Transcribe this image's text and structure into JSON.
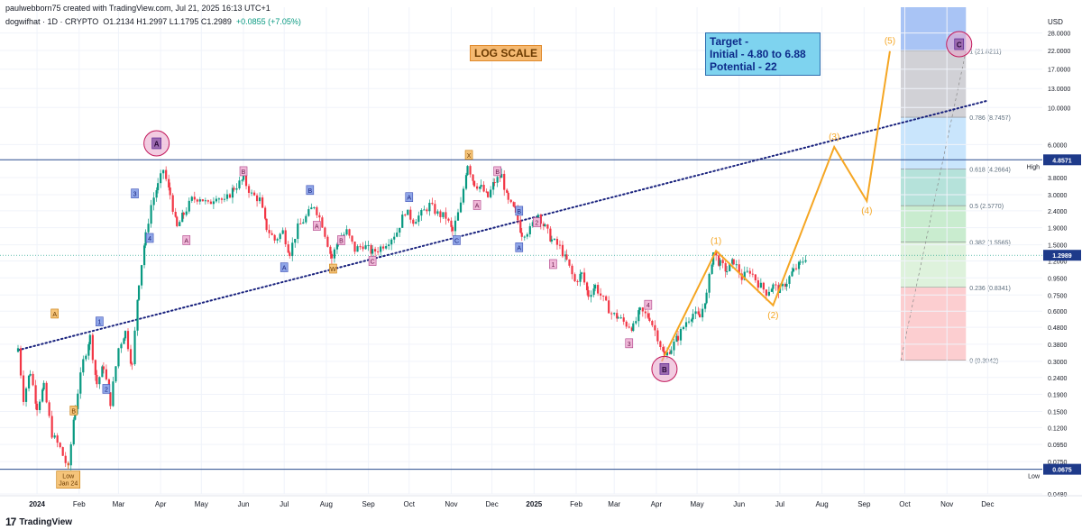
{
  "header": {
    "publish_line": "paulwebborn75 created with TradingView.com, Jul 21, 2025 16:13 UTC+1",
    "symbol": "dogwifhat · 1D · CRYPTO",
    "ohlc": "O1.2134  H1.2997  L1.1795  C1.2989",
    "change": "+0.0855 (+7.05%)"
  },
  "currency": "USD",
  "footer": {
    "logo_text": "17",
    "brand": "TradingView"
  },
  "annotations": {
    "log_scale": "LOG SCALE",
    "target": "Target -\nInitial - 4.80 to 6.88\nPotential - 22"
  },
  "colors": {
    "up": "#089981",
    "down": "#f23645",
    "wave": "#f5a623",
    "trendline": "#1a237e",
    "purple": "#9c27b0",
    "hline": "#2a4b8d",
    "price_badge": "#1e3a8a"
  },
  "chart_data": {
    "type": "candlestick",
    "y_scale": "log",
    "ylim": [
      0.048,
      40
    ],
    "x_range": [
      "2023-12-18",
      "2025-12-20"
    ],
    "y_ticks": [
      28,
      22,
      17,
      13,
      10,
      6,
      3.8,
      3,
      2.4,
      1.9,
      1.5,
      1.2,
      0.95,
      0.75,
      0.6,
      0.48,
      0.38,
      0.3,
      0.24,
      0.19,
      0.15,
      0.12,
      0.095,
      0.075,
      0.0675,
      0.048
    ],
    "y_tick_labels": [
      "28.0000",
      "22.0000",
      "17.0000",
      "13.0000",
      "10.0000",
      "6.0000",
      "3.8000",
      "3.0000",
      "2.4000",
      "1.9000",
      "1.5000",
      "1.2000",
      "0.9500",
      "0.7500",
      "0.6000",
      "0.4800",
      "0.3800",
      "0.3000",
      "0.2400",
      "0.1900",
      "0.1500",
      "0.1200",
      "0.0950",
      "0.0750",
      "0.0675",
      "0.0480"
    ],
    "x_ticks": [
      {
        "date": "2024-01-01",
        "label": "2024"
      },
      {
        "date": "2024-02-01",
        "label": "Feb"
      },
      {
        "date": "2024-03-01",
        "label": "Mar"
      },
      {
        "date": "2024-04-01",
        "label": "Apr"
      },
      {
        "date": "2024-05-01",
        "label": "May"
      },
      {
        "date": "2024-06-01",
        "label": "Jun"
      },
      {
        "date": "2024-07-01",
        "label": "Jul"
      },
      {
        "date": "2024-08-01",
        "label": "Aug"
      },
      {
        "date": "2024-09-01",
        "label": "Sep"
      },
      {
        "date": "2024-10-01",
        "label": "Oct"
      },
      {
        "date": "2024-11-01",
        "label": "Nov"
      },
      {
        "date": "2024-12-01",
        "label": "Dec"
      },
      {
        "date": "2025-01-01",
        "label": "2025"
      },
      {
        "date": "2025-02-01",
        "label": "Feb"
      },
      {
        "date": "2025-03-01",
        "label": "Mar"
      },
      {
        "date": "2025-04-01",
        "label": "Apr"
      },
      {
        "date": "2025-05-01",
        "label": "May"
      },
      {
        "date": "2025-06-01",
        "label": "Jun"
      },
      {
        "date": "2025-07-01",
        "label": "Jul"
      },
      {
        "date": "2025-08-01",
        "label": "Aug"
      },
      {
        "date": "2025-09-01",
        "label": "Sep"
      },
      {
        "date": "2025-10-01",
        "label": "Oct"
      },
      {
        "date": "2025-11-01",
        "label": "Nov"
      },
      {
        "date": "2025-12-01",
        "label": "Dec"
      }
    ],
    "price_path": [
      [
        "2023-12-18",
        0.36
      ],
      [
        "2023-12-22",
        0.18
      ],
      [
        "2023-12-27",
        0.26
      ],
      [
        "2024-01-01",
        0.16
      ],
      [
        "2024-01-06",
        0.21
      ],
      [
        "2024-01-12",
        0.11
      ],
      [
        "2024-01-18",
        0.09
      ],
      [
        "2024-01-24",
        0.0675
      ],
      [
        "2024-01-29",
        0.16
      ],
      [
        "2024-02-04",
        0.3
      ],
      [
        "2024-02-09",
        0.42
      ],
      [
        "2024-02-14",
        0.22
      ],
      [
        "2024-02-19",
        0.28
      ],
      [
        "2024-02-24",
        0.17
      ],
      [
        "2024-03-01",
        0.36
      ],
      [
        "2024-03-06",
        0.45
      ],
      [
        "2024-03-11",
        0.28
      ],
      [
        "2024-03-16",
        0.9
      ],
      [
        "2024-03-21",
        1.7
      ],
      [
        "2024-03-25",
        2.6
      ],
      [
        "2024-03-30",
        3.4
      ],
      [
        "2024-04-03",
        4.25
      ],
      [
        "2024-04-08",
        3.0
      ],
      [
        "2024-04-13",
        1.9
      ],
      [
        "2024-04-18",
        2.3
      ],
      [
        "2024-04-24",
        2.8
      ],
      [
        "2024-04-30",
        2.9
      ],
      [
        "2024-05-06",
        2.6
      ],
      [
        "2024-05-12",
        3.0
      ],
      [
        "2024-05-18",
        2.7
      ],
      [
        "2024-05-25",
        3.3
      ],
      [
        "2024-06-01",
        3.7
      ],
      [
        "2024-06-07",
        3.0
      ],
      [
        "2024-06-13",
        2.8
      ],
      [
        "2024-06-18",
        1.9
      ],
      [
        "2024-06-24",
        1.6
      ],
      [
        "2024-06-30",
        1.8
      ],
      [
        "2024-07-05",
        1.35
      ],
      [
        "2024-07-11",
        1.9
      ],
      [
        "2024-07-17",
        2.2
      ],
      [
        "2024-07-23",
        2.6
      ],
      [
        "2024-07-29",
        2.0
      ],
      [
        "2024-08-05",
        1.25
      ],
      [
        "2024-08-10",
        1.6
      ],
      [
        "2024-08-16",
        1.8
      ],
      [
        "2024-08-22",
        1.4
      ],
      [
        "2024-08-28",
        1.5
      ],
      [
        "2024-09-04",
        1.35
      ],
      [
        "2024-09-10",
        1.45
      ],
      [
        "2024-09-16",
        1.6
      ],
      [
        "2024-09-22",
        1.8
      ],
      [
        "2024-09-28",
        2.4
      ],
      [
        "2024-10-04",
        2.1
      ],
      [
        "2024-10-10",
        2.3
      ],
      [
        "2024-10-16",
        2.6
      ],
      [
        "2024-10-22",
        2.3
      ],
      [
        "2024-10-28",
        2.2
      ],
      [
        "2024-11-02",
        1.8
      ],
      [
        "2024-11-08",
        2.6
      ],
      [
        "2024-11-13",
        4.6
      ],
      [
        "2024-11-18",
        3.5
      ],
      [
        "2024-11-23",
        3.3
      ],
      [
        "2024-11-28",
        2.9
      ],
      [
        "2024-12-03",
        3.6
      ],
      [
        "2024-12-08",
        3.9
      ],
      [
        "2024-12-13",
        2.7
      ],
      [
        "2024-12-18",
        2.4
      ],
      [
        "2024-12-23",
        1.75
      ],
      [
        "2024-12-29",
        1.85
      ],
      [
        "2025-01-04",
        2.3
      ],
      [
        "2025-01-09",
        1.9
      ],
      [
        "2025-01-14",
        1.6
      ],
      [
        "2025-01-20",
        1.45
      ],
      [
        "2025-01-25",
        1.2
      ],
      [
        "2025-01-31",
        0.9
      ],
      [
        "2025-02-05",
        1.0
      ],
      [
        "2025-02-10",
        0.75
      ],
      [
        "2025-02-15",
        0.85
      ],
      [
        "2025-02-21",
        0.7
      ],
      [
        "2025-02-27",
        0.58
      ],
      [
        "2025-03-04",
        0.55
      ],
      [
        "2025-03-10",
        0.5
      ],
      [
        "2025-03-15",
        0.48
      ],
      [
        "2025-03-20",
        0.6
      ],
      [
        "2025-03-27",
        0.55
      ],
      [
        "2025-04-02",
        0.42
      ],
      [
        "2025-04-07",
        0.32
      ],
      [
        "2025-04-12",
        0.36
      ],
      [
        "2025-04-17",
        0.42
      ],
      [
        "2025-04-23",
        0.52
      ],
      [
        "2025-04-28",
        0.58
      ],
      [
        "2025-05-03",
        0.55
      ],
      [
        "2025-05-08",
        0.75
      ],
      [
        "2025-05-13",
        1.35
      ],
      [
        "2025-05-18",
        1.15
      ],
      [
        "2025-05-23",
        1.05
      ],
      [
        "2025-05-28",
        1.2
      ],
      [
        "2025-06-03",
        0.95
      ],
      [
        "2025-06-09",
        1.05
      ],
      [
        "2025-06-15",
        0.88
      ],
      [
        "2025-06-21",
        0.78
      ],
      [
        "2025-06-26",
        0.85
      ],
      [
        "2025-07-01",
        0.8
      ],
      [
        "2025-07-06",
        0.9
      ],
      [
        "2025-07-11",
        1.05
      ],
      [
        "2025-07-16",
        1.15
      ],
      [
        "2025-07-21",
        1.2989
      ]
    ],
    "hlines": [
      {
        "name": "High",
        "value": 4.8571,
        "label": "4.8571"
      },
      {
        "name": "Low",
        "value": 0.0675,
        "label": "0.0675"
      }
    ],
    "current_price": {
      "value": 1.2989,
      "label": "1.2989"
    },
    "trendline": {
      "from": [
        "2023-12-18",
        0.35
      ],
      "to": [
        "2025-12-01",
        11.0
      ]
    },
    "fib_box": {
      "from": "2025-09-28",
      "to": "2025-11-15",
      "levels": [
        {
          "ratio": "1",
          "value": 21.8211,
          "label": "1 (21.8211)",
          "fill": "#c9c9cf"
        },
        {
          "ratio": "0.786",
          "value": 8.7457,
          "label": "0.786 (8.7457)",
          "fill": "#bfe1fb"
        },
        {
          "ratio": "0.618",
          "value": 4.2664,
          "label": "0.618 (4.2664)",
          "fill": "#a8ddd4"
        },
        {
          "ratio": "0.5",
          "value": 2.577,
          "label": "0.5 (2.5770)",
          "fill": "#bfe9c7"
        },
        {
          "ratio": "0.382",
          "value": 1.5565,
          "label": "0.382 (1.5565)",
          "fill": "#d8f0d6"
        },
        {
          "ratio": "0.236",
          "value": 0.8341,
          "label": "0.236 (0.8341)",
          "fill": "#fbc5c8"
        },
        {
          "ratio": "0",
          "value": 0.3042,
          "label": "0 (0.3042)",
          "fill": ""
        }
      ],
      "top_value": 40,
      "top_fill": "#a9c4f5"
    },
    "wave_projection": [
      {
        "date": "2025-04-05",
        "value": 0.3,
        "label": ""
      },
      {
        "date": "2025-05-15",
        "value": 1.38,
        "label": "(1)"
      },
      {
        "date": "2025-06-26",
        "value": 0.65,
        "label": "(2)"
      },
      {
        "date": "2025-08-10",
        "value": 5.8,
        "label": "(3)"
      },
      {
        "date": "2025-09-03",
        "value": 2.75,
        "label": "(4)"
      },
      {
        "date": "2025-09-20",
        "value": 21.8,
        "label": "(5)"
      }
    ],
    "wave_markers": [
      {
        "date": "2024-03-29",
        "value": 6.1,
        "label": "A",
        "style": "circle"
      },
      {
        "date": "2025-04-07",
        "value": 0.27,
        "label": "B",
        "style": "circle"
      },
      {
        "date": "2025-11-10",
        "value": 24.0,
        "label": "C",
        "style": "circle"
      },
      {
        "date": "2024-01-14",
        "value": 0.58,
        "label": "A",
        "style": "orange"
      },
      {
        "date": "2024-01-28",
        "value": 0.152,
        "label": "B",
        "style": "orange"
      },
      {
        "date": "2024-02-16",
        "value": 0.52,
        "label": "1",
        "style": "blue"
      },
      {
        "date": "2024-02-21",
        "value": 0.205,
        "label": "2",
        "style": "blue"
      },
      {
        "date": "2024-03-13",
        "value": 3.05,
        "label": "3",
        "style": "blue"
      },
      {
        "date": "2024-03-24",
        "value": 1.65,
        "label": "4",
        "style": "blue"
      },
      {
        "date": "2024-04-20",
        "value": 1.6,
        "label": "A",
        "style": "purple"
      },
      {
        "date": "2024-06-01",
        "value": 4.15,
        "label": "B",
        "style": "purple"
      },
      {
        "date": "2024-07-01",
        "value": 1.1,
        "label": "A",
        "style": "blue"
      },
      {
        "date": "2024-07-20",
        "value": 3.2,
        "label": "B",
        "style": "blue"
      },
      {
        "date": "2024-07-25",
        "value": 1.95,
        "label": "A",
        "style": "purple"
      },
      {
        "date": "2024-08-06",
        "value": 1.08,
        "label": "W",
        "style": "orange"
      },
      {
        "date": "2024-08-12",
        "value": 1.6,
        "label": "B",
        "style": "purple"
      },
      {
        "date": "2024-09-04",
        "value": 1.2,
        "label": "C",
        "style": "purple"
      },
      {
        "date": "2024-10-01",
        "value": 2.9,
        "label": "A",
        "style": "blue"
      },
      {
        "date": "2024-11-05",
        "value": 1.6,
        "label": "C",
        "style": "blue"
      },
      {
        "date": "2024-11-14",
        "value": 5.2,
        "label": "X",
        "style": "orange"
      },
      {
        "date": "2024-11-20",
        "value": 2.6,
        "label": "A",
        "style": "purple"
      },
      {
        "date": "2024-12-05",
        "value": 4.15,
        "label": "B",
        "style": "purple"
      },
      {
        "date": "2024-12-21",
        "value": 2.4,
        "label": "B",
        "style": "blue"
      },
      {
        "date": "2024-12-21",
        "value": 1.45,
        "label": "A",
        "style": "blue"
      },
      {
        "date": "2025-01-03",
        "value": 2.05,
        "label": "2",
        "style": "purple"
      },
      {
        "date": "2025-01-15",
        "value": 1.15,
        "label": "1",
        "style": "purple"
      },
      {
        "date": "2025-03-26",
        "value": 0.655,
        "label": "4",
        "style": "purple"
      },
      {
        "date": "2025-03-12",
        "value": 0.385,
        "label": "3",
        "style": "purple"
      }
    ],
    "low_callout": {
      "date": "2024-01-24",
      "value": 0.0675,
      "label": "Low\nJan 24"
    },
    "axis_labels": {
      "high": "High",
      "low": "Low"
    }
  }
}
